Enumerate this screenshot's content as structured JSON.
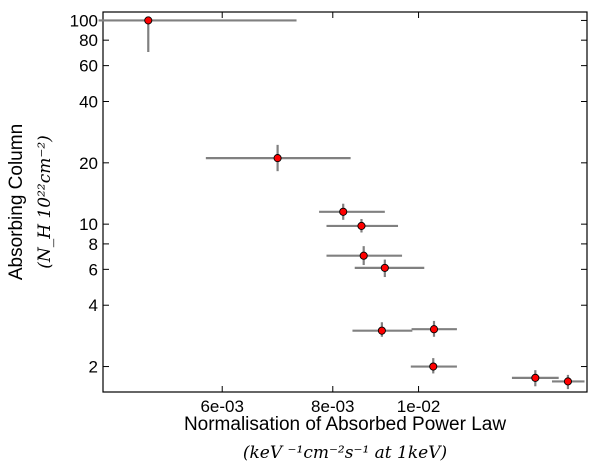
{
  "chart_data": {
    "type": "scatter",
    "title": "",
    "xlabel": "Normalisation of Absorbed Power Law",
    "xlabel_units": "(keV ⁻¹cm⁻²s⁻¹ at 1keV)",
    "ylabel": "Absorbing Column",
    "ylabel_units": "(N_H 10²²cm⁻²)",
    "xscale": "log",
    "yscale": "log",
    "xlim": [
      0.0044,
      0.0155
    ],
    "ylim": [
      1.5,
      110
    ],
    "x_ticks": [
      0.006,
      0.008,
      0.01
    ],
    "x_tick_labels": [
      "6e-03",
      "8e-03",
      "1e-02"
    ],
    "y_ticks": [
      2,
      4,
      6,
      8,
      10,
      20,
      40,
      60,
      80,
      100
    ],
    "y_tick_labels": [
      "2",
      "4",
      "6",
      "8",
      "10",
      "20",
      "40",
      "60",
      "80",
      "100"
    ],
    "grid": false,
    "legend": "none",
    "marker_color": "#ff0000",
    "errorbar_color": "#808080",
    "points": [
      {
        "x": 0.00495,
        "y": 100,
        "xerr": [
          0.00435,
          0.00728
        ],
        "yerr": [
          70,
          100
        ]
      },
      {
        "x": 0.00693,
        "y": 21.1,
        "xerr": [
          0.00575,
          0.00838
        ],
        "yerr": [
          18.2,
          24.5
        ]
      },
      {
        "x": 0.00822,
        "y": 11.5,
        "xerr": [
          0.00772,
          0.00916
        ],
        "yerr": [
          10.5,
          12.6
        ]
      },
      {
        "x": 0.00862,
        "y": 9.8,
        "xerr": [
          0.00787,
          0.00948
        ],
        "yerr": [
          9.1,
          10.6
        ]
      },
      {
        "x": 0.00867,
        "y": 7.0,
        "xerr": [
          0.00787,
          0.00958
        ],
        "yerr": [
          6.3,
          7.8
        ]
      },
      {
        "x": 0.00916,
        "y": 6.1,
        "xerr": [
          0.00847,
          0.01015
        ],
        "yerr": [
          5.5,
          6.7
        ]
      },
      {
        "x": 0.00909,
        "y": 3.0,
        "xerr": [
          0.00842,
          0.00984
        ],
        "yerr": [
          2.8,
          3.3
        ]
      },
      {
        "x": 0.01041,
        "y": 3.05,
        "xerr": [
          0.00982,
          0.01105
        ],
        "yerr": [
          2.8,
          3.35
        ]
      },
      {
        "x": 0.01039,
        "y": 2.0,
        "xerr": [
          0.0098,
          0.01105
        ],
        "yerr": [
          1.85,
          2.2
        ]
      },
      {
        "x": 0.01355,
        "y": 1.76,
        "xerr": [
          0.01275,
          0.0144
        ],
        "yerr": [
          1.6,
          1.92
        ]
      },
      {
        "x": 0.01475,
        "y": 1.69,
        "xerr": [
          0.01415,
          0.0154
        ],
        "yerr": [
          1.55,
          1.82
        ]
      }
    ]
  }
}
